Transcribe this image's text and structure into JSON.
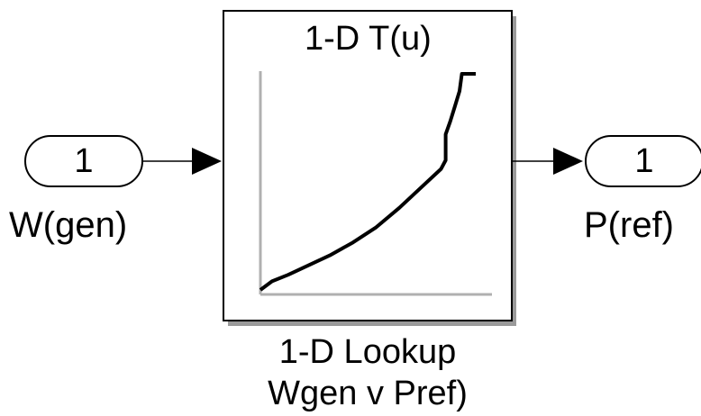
{
  "inport": {
    "number": "1",
    "name": "W(gen)"
  },
  "outport": {
    "number": "1",
    "name": "P(ref)"
  },
  "lookup_block": {
    "icon_text": "1-D T(u)",
    "name_line1": "1-D Lookup",
    "name_line2": "Wgen v Pref)"
  },
  "colors": {
    "line": "#000000",
    "axis": "#b0b0b0",
    "block_border": "#000000",
    "shadow": "#9a9a9a"
  },
  "icon_curve": {
    "shape": "monotonic increasing with steep rise near the end",
    "points": [
      [
        0,
        0
      ],
      [
        0.05,
        0.04
      ],
      [
        0.12,
        0.07
      ],
      [
        0.2,
        0.11
      ],
      [
        0.3,
        0.16
      ],
      [
        0.4,
        0.22
      ],
      [
        0.5,
        0.29
      ],
      [
        0.6,
        0.38
      ],
      [
        0.7,
        0.48
      ],
      [
        0.78,
        0.56
      ],
      [
        0.8,
        0.6
      ],
      [
        0.8,
        0.72
      ],
      [
        0.82,
        0.78
      ],
      [
        0.84,
        0.85
      ],
      [
        0.86,
        0.92
      ],
      [
        0.87,
        1.0
      ],
      [
        0.93,
        1.0
      ]
    ]
  }
}
